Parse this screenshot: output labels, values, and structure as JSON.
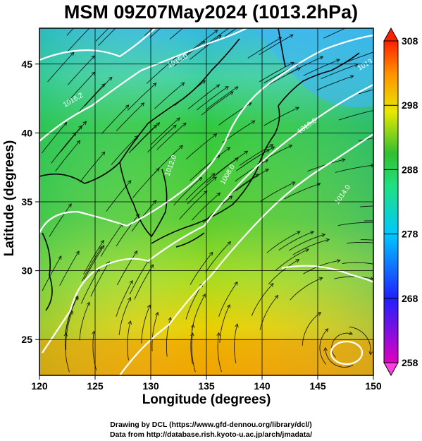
{
  "title": "MSM 09Z07May2024 (1013.2hPa)",
  "xaxis": {
    "label": "Longitude (degrees)",
    "ticks": [
      120,
      125,
      130,
      135,
      140,
      145,
      150
    ],
    "range": [
      120,
      150
    ]
  },
  "yaxis": {
    "label": "Latitude  (degrees)",
    "ticks": [
      25,
      30,
      35,
      40,
      45
    ],
    "range": [
      22.4,
      47.6
    ]
  },
  "colorbar": {
    "ticks": [
      258,
      268,
      278,
      288,
      298,
      308
    ],
    "range": [
      258,
      308
    ],
    "colors": [
      "#e000c0",
      "#2020ff",
      "#00c8ff",
      "#20e080",
      "#30c030",
      "#e8e800",
      "#ff9000",
      "#ff2000"
    ]
  },
  "contour_labels": [
    "1016.2",
    "1015.0",
    "1013.0",
    "1008.0",
    "1012.0",
    "1014.0",
    "1013.0"
  ],
  "credits": {
    "line1": "Drawing by DCL (https://www.gfd-dennou.org/library/dcl/)",
    "line2": "Data from http://database.rish.kyoto-u.ac.jp/arch/jmadata/"
  }
}
